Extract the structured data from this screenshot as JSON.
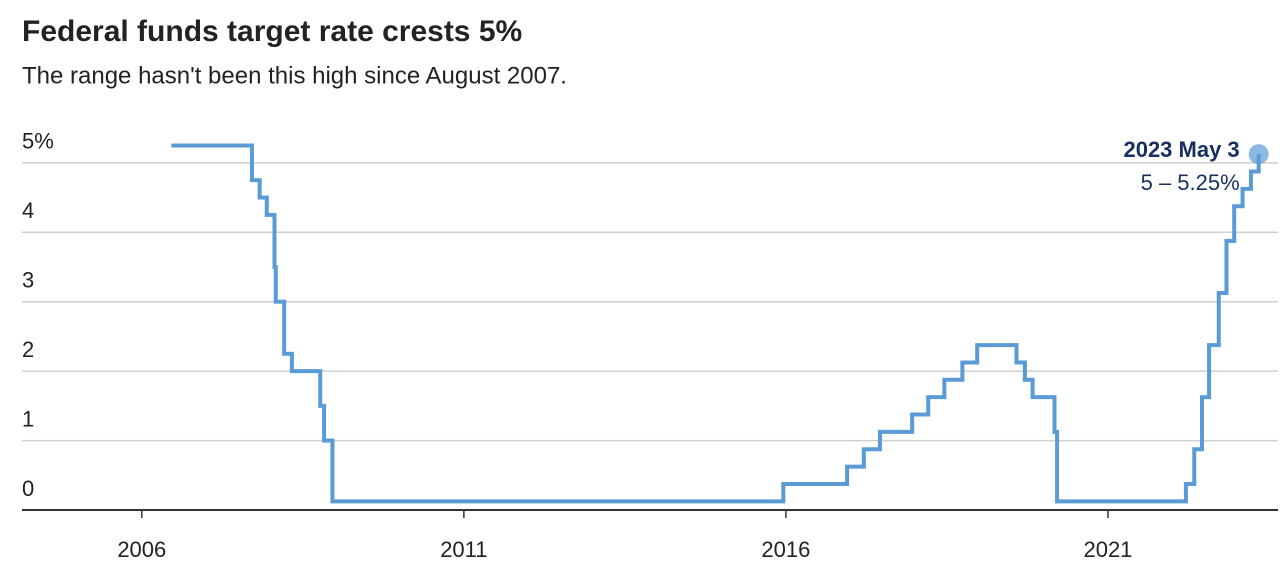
{
  "chart_data": {
    "type": "step",
    "title": "Federal funds target rate crests 5%",
    "subtitle": "The range hasn't been this high since August 2007.",
    "annotation": {
      "date": "2023 May 3",
      "range": "5 – 5.25%"
    },
    "color": "#5b9bd5",
    "x": [
      2006.49,
      2007.71,
      2007.83,
      2007.94,
      2008.06,
      2008.08,
      2008.21,
      2008.33,
      2008.77,
      2008.83,
      2008.96,
      2015.96,
      2016.95,
      2017.21,
      2017.46,
      2017.96,
      2018.21,
      2018.46,
      2018.74,
      2018.97,
      2019.58,
      2019.71,
      2019.83,
      2020.17,
      2020.21,
      2022.21,
      2022.34,
      2022.46,
      2022.57,
      2022.72,
      2022.84,
      2022.96,
      2023.09,
      2023.22,
      2023.34
    ],
    "series": [
      {
        "name": "Federal funds target rate",
        "color": "#5b9bd5",
        "values": [
          5.25,
          4.75,
          4.5,
          4.25,
          3.5,
          3.0,
          2.25,
          2.0,
          1.5,
          1.0,
          0.125,
          0.375,
          0.625,
          0.875,
          1.125,
          1.375,
          1.625,
          1.875,
          2.125,
          2.375,
          2.125,
          1.875,
          1.625,
          1.125,
          0.125,
          0.375,
          0.875,
          1.625,
          2.375,
          3.125,
          3.875,
          4.375,
          4.625,
          4.875,
          5.125
        ]
      }
    ],
    "xlim": [
      2004.14,
      2023.64
    ],
    "xticks": [
      2006,
      2011,
      2016,
      2021
    ],
    "ylim": [
      0,
      5.3
    ],
    "yticks": [
      0,
      1,
      2,
      3,
      4,
      {
        "value": 5,
        "label": "5%"
      }
    ],
    "grid": true
  }
}
